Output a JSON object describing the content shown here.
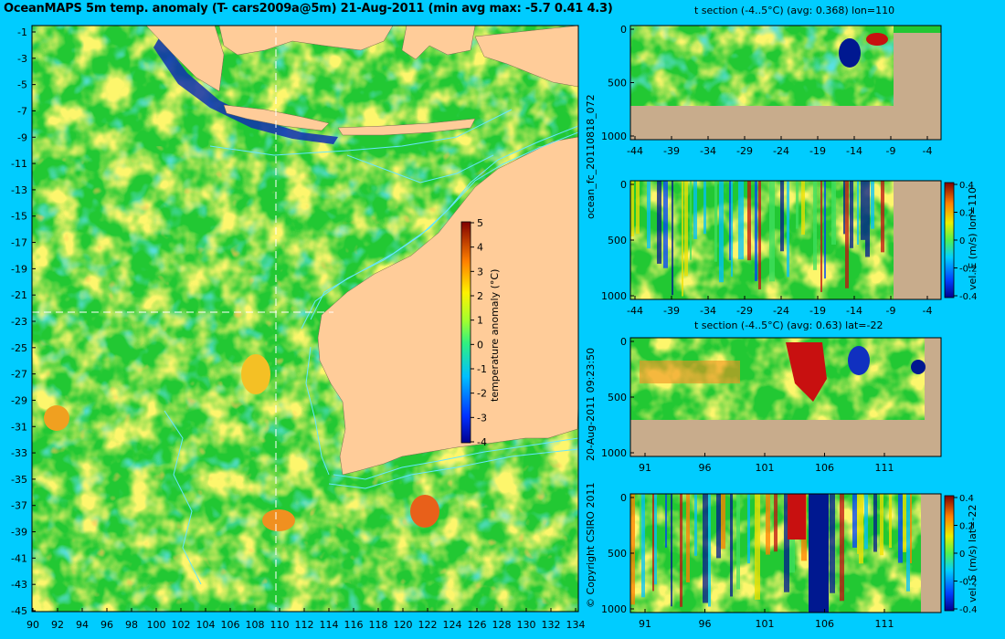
{
  "title": "OceanMAPS 5m temp. anomaly (T- cars2009a@5m) 21-Aug-2011 (min avg max: -5.7 0.41 4.3)",
  "map": {
    "colorbar_label": "temperature anomaly (°C)",
    "colorbar_ticks": [
      "5",
      "4",
      "3",
      "2",
      "1",
      "0",
      "-1",
      "-2",
      "-3",
      "-4"
    ],
    "lat_ticks": [
      "-1",
      "-3",
      "-5",
      "-7",
      "-9",
      "-11",
      "-13",
      "-15",
      "-17",
      "-19",
      "-21",
      "-23",
      "-25",
      "-27",
      "-29",
      "-31",
      "-33",
      "-35",
      "-37",
      "-39",
      "-41",
      "-43",
      "-45"
    ],
    "lon_ticks": [
      "90",
      "92",
      "94",
      "96",
      "98",
      "100",
      "102",
      "104",
      "106",
      "108",
      "110",
      "112",
      "114",
      "116",
      "118",
      "120",
      "122",
      "124",
      "126",
      "128",
      "130",
      "132",
      "134"
    ],
    "section_lon": 110,
    "section_lat": -22
  },
  "side_text": {
    "forecast_id": "ocean_fc_20110818_072",
    "timestamp": "20-Aug-2011 09:23:50",
    "copyright": "© Copyright CSIRO 2011"
  },
  "panels": [
    {
      "title": "t section (-4..5°C) (avg: 0.368) lon=110",
      "x_ticks": [
        "-44",
        "-39",
        "-34",
        "-29",
        "-24",
        "-19",
        "-14",
        "-9",
        "-4"
      ],
      "y_ticks": [
        "0",
        "500",
        "1000"
      ],
      "colorbar_label": "",
      "colorbar_ticks": []
    },
    {
      "title": "",
      "x_ticks": [
        "-44",
        "-39",
        "-34",
        "-29",
        "-24",
        "-19",
        "-14",
        "-9",
        "-4"
      ],
      "y_ticks": [
        "0",
        "500",
        "1000"
      ],
      "colorbar_label": "vel. E (m/s) lon=110",
      "colorbar_ticks": [
        "0.4",
        "0.2",
        "0",
        "-0.2",
        "-0.4"
      ]
    },
    {
      "title": "t section (-4..5°C) (avg: 0.63) lat=-22",
      "x_ticks": [
        "91",
        "96",
        "101",
        "106",
        "111"
      ],
      "y_ticks": [
        "0",
        "500",
        "1000"
      ],
      "colorbar_label": "",
      "colorbar_ticks": []
    },
    {
      "title": "",
      "x_ticks": [
        "91",
        "96",
        "101",
        "106",
        "111"
      ],
      "y_ticks": [
        "0",
        "500",
        "1000"
      ],
      "colorbar_label": "vel. S (m/s) lat=-22",
      "colorbar_ticks": [
        "0.4",
        "0.2",
        "0",
        "-0.2",
        "-0.4"
      ]
    }
  ],
  "colors": {
    "background": "#00CCFF",
    "land": "#FFCC99",
    "section_bottom": "#C8AC8C",
    "ocean_base": "#22C833",
    "anomaly_warm": "#F4E033",
    "contour": "#66E6FF"
  }
}
